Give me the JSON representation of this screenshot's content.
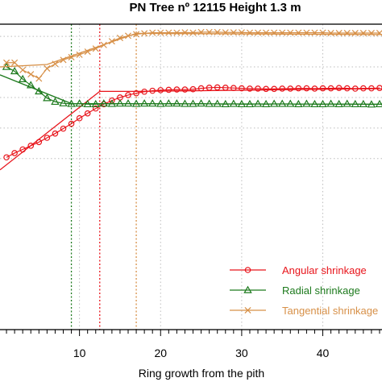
{
  "chart_data": {
    "type": "line",
    "title": "PN Tree nº 12115 Height 1.3 m",
    "xlabel": "Ring growth from the pith",
    "ylabel": "",
    "x_ticks": [
      "10",
      "20",
      "30",
      "40"
    ],
    "xlim": [
      0.2,
      47.3
    ],
    "ylim": [
      0,
      1
    ],
    "y_grid_values": [
      0.56,
      0.66,
      0.76,
      0.86,
      0.96
    ],
    "grid": true,
    "legend_position": "bottom-right",
    "colors": {
      "angular": "#e8141b",
      "radial": "#1d7a1d",
      "tangential": "#d79048"
    },
    "reference_lines": [
      {
        "x": 9.0,
        "color": "#1d7a1d"
      },
      {
        "x": 12.5,
        "color": "#e8141b"
      },
      {
        "x": 17.0,
        "color": "#d79048"
      }
    ],
    "series": [
      {
        "name": "Angular shrinkage",
        "key": "angular",
        "marker": "circle",
        "observed": {
          "x": [
            1,
            2,
            3,
            4,
            5,
            6,
            7,
            8,
            9,
            10,
            11,
            12,
            13,
            14,
            15,
            16,
            17,
            18,
            19,
            20,
            21,
            22,
            23,
            24,
            25,
            26,
            27,
            28,
            29,
            30,
            31,
            32,
            33,
            34,
            35,
            36,
            37,
            38,
            39,
            40,
            41,
            42,
            43,
            44,
            45,
            46,
            47
          ],
          "y": [
            0.564,
            0.578,
            0.59,
            0.602,
            0.614,
            0.628,
            0.642,
            0.658,
            0.674,
            0.692,
            0.708,
            0.724,
            0.738,
            0.75,
            0.76,
            0.768,
            0.774,
            0.779,
            0.782,
            0.784,
            0.785,
            0.786,
            0.786,
            0.787,
            0.79,
            0.792,
            0.793,
            0.792,
            0.791,
            0.79,
            0.789,
            0.789,
            0.788,
            0.788,
            0.789,
            0.789,
            0.79,
            0.79,
            0.789,
            0.79,
            0.79,
            0.791,
            0.79,
            0.789,
            0.79,
            0.79,
            0.791
          ]
        },
        "fitted": {
          "x": [
            0.2,
            12.5,
            17.0,
            47.3
          ],
          "y": [
            0.523,
            0.78,
            0.78,
            0.789
          ]
        }
      },
      {
        "name": "Radial shrinkage",
        "key": "radial",
        "marker": "triangle",
        "observed": {
          "x": [
            1,
            2,
            3,
            4,
            5,
            6,
            7,
            8,
            9,
            10,
            11,
            12,
            13,
            14,
            15,
            16,
            17,
            18,
            19,
            20,
            21,
            22,
            23,
            24,
            25,
            26,
            27,
            28,
            29,
            30,
            31,
            32,
            33,
            34,
            35,
            36,
            37,
            38,
            39,
            40,
            41,
            42,
            43,
            44,
            45,
            46,
            47
          ],
          "y": [
            0.86,
            0.846,
            0.82,
            0.8,
            0.78,
            0.758,
            0.746,
            0.741,
            0.739,
            0.74,
            0.738,
            0.738,
            0.74,
            0.739,
            0.74,
            0.74,
            0.739,
            0.74,
            0.74,
            0.739,
            0.74,
            0.74,
            0.739,
            0.739,
            0.74,
            0.739,
            0.739,
            0.738,
            0.739,
            0.738,
            0.738,
            0.739,
            0.738,
            0.739,
            0.739,
            0.739,
            0.738,
            0.739,
            0.738,
            0.738,
            0.739,
            0.738,
            0.739,
            0.738,
            0.738,
            0.737,
            0.738
          ]
        },
        "fitted": {
          "x": [
            0.2,
            9.0,
            47.3
          ],
          "y": [
            0.834,
            0.74,
            0.738
          ]
        }
      },
      {
        "name": "Tangential shrinkage",
        "key": "tangential",
        "marker": "cross",
        "observed": {
          "x": [
            1,
            2,
            3,
            4,
            5,
            6,
            7,
            8,
            9,
            10,
            11,
            12,
            13,
            14,
            15,
            16,
            17,
            18,
            19,
            20,
            21,
            22,
            23,
            24,
            25,
            26,
            27,
            28,
            29,
            30,
            31,
            32,
            33,
            34,
            35,
            36,
            37,
            38,
            39,
            40,
            41,
            42,
            43,
            44,
            45,
            46,
            47
          ],
          "y": [
            0.874,
            0.874,
            0.85,
            0.836,
            0.822,
            0.855,
            0.87,
            0.883,
            0.892,
            0.9,
            0.91,
            0.92,
            0.932,
            0.944,
            0.955,
            0.962,
            0.967,
            0.97,
            0.972,
            0.972,
            0.972,
            0.972,
            0.973,
            0.972,
            0.974,
            0.974,
            0.974,
            0.973,
            0.973,
            0.973,
            0.972,
            0.972,
            0.972,
            0.972,
            0.972,
            0.972,
            0.972,
            0.972,
            0.972,
            0.972,
            0.971,
            0.971,
            0.971,
            0.971,
            0.971,
            0.971,
            0.971
          ]
        },
        "fitted": {
          "x": [
            0.2,
            6.0,
            17.0,
            47.3
          ],
          "y": [
            0.86,
            0.868,
            0.97,
            0.966
          ]
        }
      }
    ]
  }
}
